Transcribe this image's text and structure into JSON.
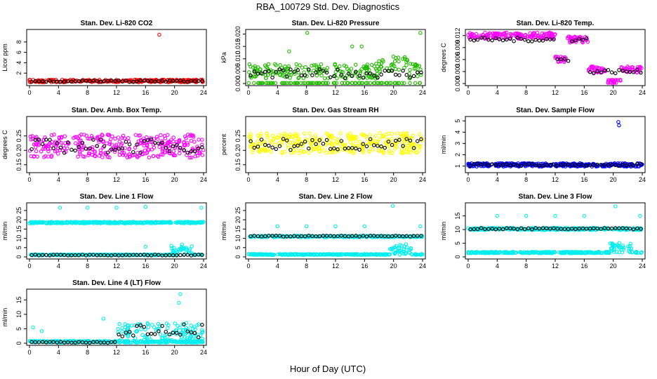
{
  "figure": {
    "title": "RBA_100729  Std. Dev. Diagnostics",
    "xlabel": "Hour of Day (UTC)"
  },
  "chart_data": [
    {
      "id": "co2",
      "type": "scatter",
      "title": "Stan. Dev. Li-820 CO2",
      "ylabel": "Licor ppm",
      "color": "#ff0000",
      "xlim": [
        0,
        24
      ],
      "ylim": [
        0,
        10
      ],
      "xticks": [
        "0",
        "4",
        "8",
        "12",
        "16",
        "20",
        "24"
      ],
      "yticks": [
        "2",
        "4",
        "6",
        "8"
      ],
      "baseline": 0.5,
      "spread": 0.25,
      "outliers": [
        [
          17.9,
          9.4
        ]
      ],
      "black_base": 0.45
    },
    {
      "id": "pressure",
      "type": "scatter",
      "title": "Stan. Dev. Li-820 Pressure",
      "ylabel": "kPa",
      "color": "#22bb00",
      "xlim": [
        0,
        24
      ],
      "ylim": [
        0,
        0.021
      ],
      "xticks": [
        "0",
        "4",
        "8",
        "12",
        "16",
        "20",
        "24"
      ],
      "yticks": [
        "0.000",
        "0.005",
        "0.010",
        "0.015",
        "0.020"
      ],
      "baseline": 0.005,
      "spread": 0.003,
      "outliers": [
        [
          8.1,
          0.0205
        ],
        [
          5.6,
          0.013
        ],
        [
          14.3,
          0.015
        ],
        [
          15.6,
          0.015
        ],
        [
          23.7,
          0.0205
        ]
      ],
      "black_base": 0.004
    },
    {
      "id": "temp",
      "type": "scatter",
      "title": "Stan. Dev. Li-820 Temp.",
      "ylabel": "degrees C",
      "color": "#ff00ff",
      "xlim": [
        0,
        24
      ],
      "ylim": [
        0,
        0.013
      ],
      "xticks": [
        "0",
        "4",
        "8",
        "12",
        "16",
        "20",
        "24"
      ],
      "yticks": [
        "0.000",
        "0.003",
        "0.006",
        "0.009",
        "0.012"
      ],
      "baseline": 0.012,
      "spread": 0.0008,
      "outliers": [],
      "black_base": 0.011
    },
    {
      "id": "ambbox",
      "type": "scatter",
      "title": "Stan. Dev. Amb. Box Temp.",
      "ylabel": "degrees C",
      "color": "#ff00ff",
      "xlim": [
        0,
        24
      ],
      "ylim": [
        0.13,
        0.31
      ],
      "xticks": [
        "0",
        "4",
        "8",
        "12",
        "16",
        "20",
        "24"
      ],
      "yticks": [
        "0.15",
        "0.20",
        "0.25"
      ],
      "baseline": 0.215,
      "spread": 0.04,
      "outliers": [],
      "black_base": 0.215
    },
    {
      "id": "gasrh",
      "type": "scatter",
      "title": "Stan. Dev. Gas Stream RH",
      "ylabel": "percent",
      "color": "#ffff00",
      "xlim": [
        0,
        24
      ],
      "ylim": [
        0.13,
        0.31
      ],
      "xticks": [
        "0",
        "4",
        "8",
        "12",
        "16",
        "20",
        "24"
      ],
      "yticks": [
        "0.15",
        "0.20",
        "0.25"
      ],
      "baseline": 0.225,
      "spread": 0.035,
      "outliers": [],
      "black_base": 0.22
    },
    {
      "id": "sampleflow",
      "type": "scatter",
      "title": "Stan. Dev. Sample Flow",
      "ylabel": "ml/min",
      "color": "#0000ff",
      "xlim": [
        0,
        24
      ],
      "ylim": [
        0.6,
        5.2
      ],
      "xticks": [
        "0",
        "4",
        "8",
        "12",
        "16",
        "20",
        "24"
      ],
      "yticks": [
        "1",
        "2",
        "3",
        "4",
        "5"
      ],
      "baseline": 1.1,
      "spread": 0.15,
      "outliers": [
        [
          20.7,
          4.9
        ],
        [
          20.8,
          4.6
        ]
      ],
      "black_base": 1.1
    },
    {
      "id": "line1",
      "type": "scatter",
      "title": "Stan. Dev. Line 1 Flow",
      "ylabel": "ml/min",
      "color": "#00eeee",
      "xlim": [
        0,
        24
      ],
      "ylim": [
        0,
        28
      ],
      "xticks": [
        "0",
        "4",
        "8",
        "12",
        "16",
        "20",
        "24"
      ],
      "yticks": [
        "0",
        "5",
        "10",
        "15",
        "20",
        "25"
      ],
      "baseline": 18.5,
      "spread": 0.4,
      "outliers": [
        [
          4.2,
          26.5
        ],
        [
          8.0,
          26.5
        ],
        [
          12.0,
          26.5
        ],
        [
          16.0,
          27.0
        ],
        [
          23.7,
          26.5
        ],
        [
          16.0,
          5.5
        ]
      ],
      "black_base": 1.0,
      "second": 1.0
    },
    {
      "id": "line2",
      "type": "scatter",
      "title": "Stan. Dev. Line 2 Flow",
      "ylabel": "ml/min",
      "color": "#00eeee",
      "xlim": [
        0,
        24
      ],
      "ylim": [
        0,
        28
      ],
      "xticks": [
        "0",
        "4",
        "8",
        "12",
        "16",
        "20",
        "24"
      ],
      "yticks": [
        "0",
        "5",
        "10",
        "15",
        "20",
        "25"
      ],
      "baseline": 11.0,
      "spread": 0.4,
      "outliers": [
        [
          4.0,
          16.5
        ],
        [
          8.0,
          16.5
        ],
        [
          12.0,
          16.5
        ],
        [
          16.0,
          16.5
        ],
        [
          19.9,
          27.5
        ],
        [
          23.7,
          16.5
        ]
      ],
      "black_base": 11.2,
      "second": 1.2
    },
    {
      "id": "line3",
      "type": "scatter",
      "title": "Stan. Dev. Line 3 Flow",
      "ylabel": "ml/min",
      "color": "#00eeee",
      "xlim": [
        0,
        24
      ],
      "ylim": [
        0,
        19
      ],
      "xticks": [
        "0",
        "4",
        "8",
        "12",
        "16",
        "20",
        "24"
      ],
      "yticks": [
        "0",
        "5",
        "10",
        "15"
      ],
      "baseline": 10.2,
      "spread": 0.4,
      "outliers": [
        [
          4.0,
          15.0
        ],
        [
          8.0,
          15.0
        ],
        [
          12.0,
          15.0
        ],
        [
          16.0,
          15.0
        ],
        [
          20.3,
          18.5
        ],
        [
          23.7,
          15.0
        ]
      ],
      "black_base": 10.3,
      "second": 1.5
    },
    {
      "id": "line4",
      "type": "scatter",
      "title": "Stan. Dev. Line 4 (LT) Flow",
      "ylabel": "ml/min",
      "color": "#00eeee",
      "xlim": [
        0,
        24
      ],
      "ylim": [
        0,
        18
      ],
      "xticks": [
        "0",
        "4",
        "8",
        "12",
        "16",
        "20",
        "24"
      ],
      "yticks": [
        "0",
        "5",
        "10",
        "15"
      ],
      "baseline": 0.5,
      "spread": 0.3,
      "outliers": [
        [
          20.8,
          17.0
        ],
        [
          20.6,
          14.0
        ],
        [
          10.2,
          8.5
        ],
        [
          0.5,
          5.5
        ],
        [
          1.7,
          4.2
        ]
      ],
      "black_base": 0.3
    }
  ]
}
